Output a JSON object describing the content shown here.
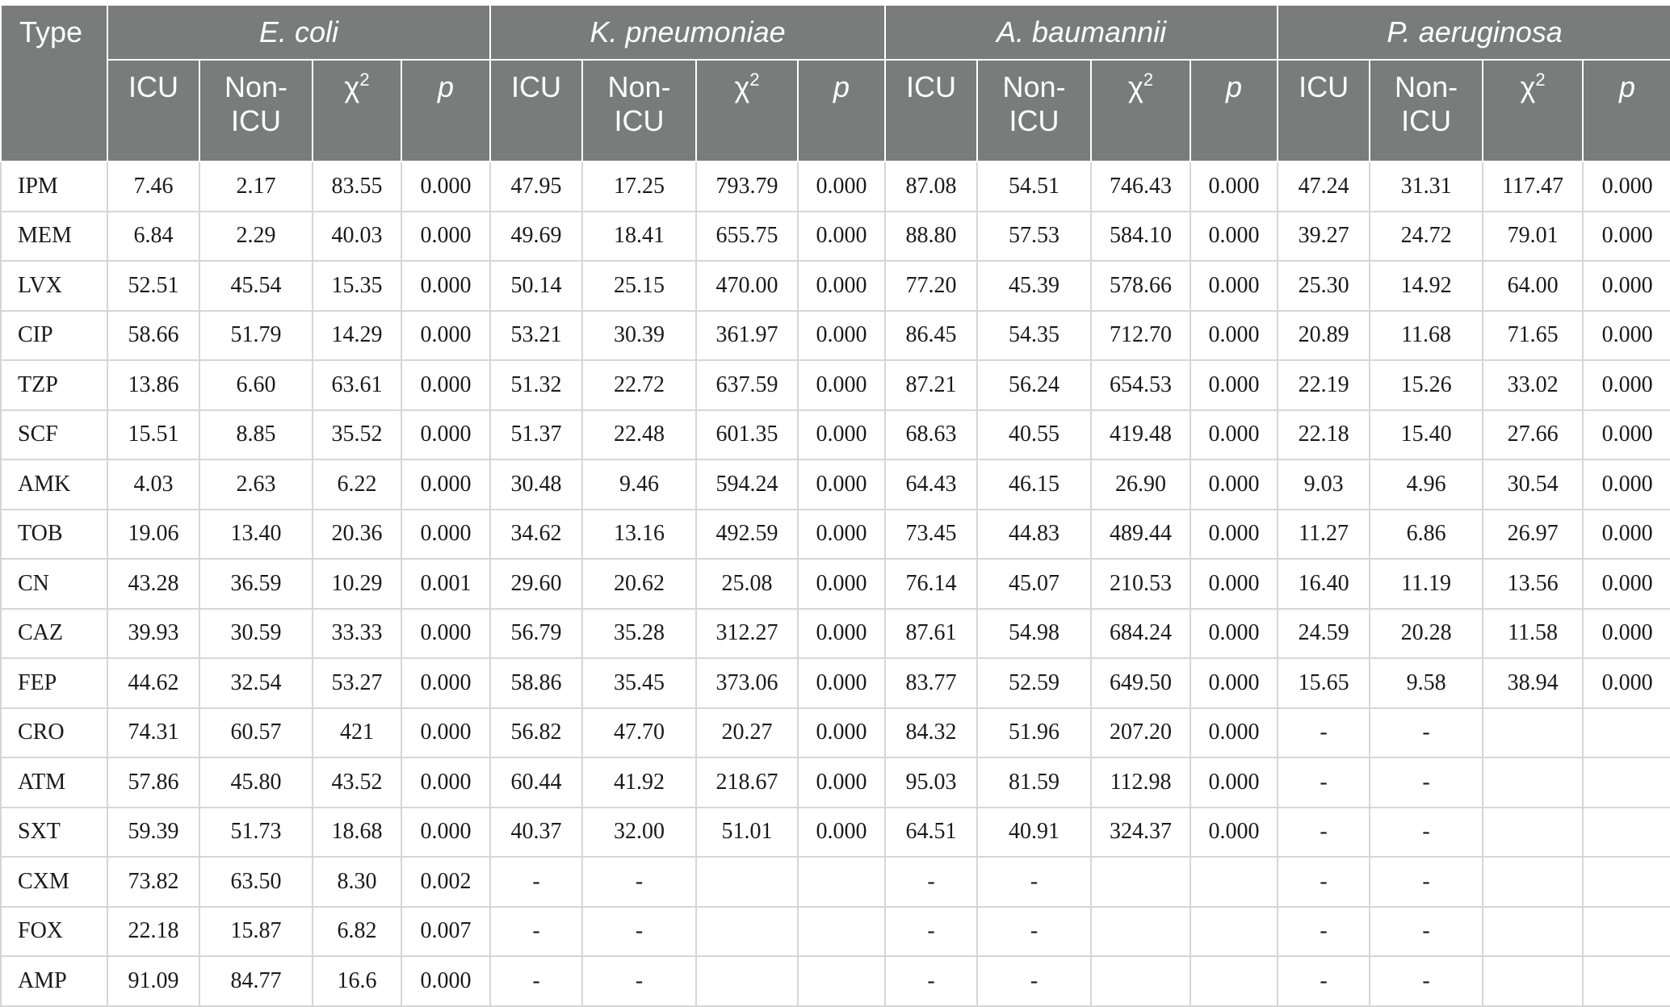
{
  "table": {
    "type_header": "Type",
    "groups": [
      {
        "name": "E. coli",
        "cols": [
          "ICU",
          "Non-ICU",
          "χ2",
          "p"
        ]
      },
      {
        "name": "K. pneumoniae",
        "cols": [
          "ICU",
          "Non-ICU",
          "χ2",
          "p"
        ]
      },
      {
        "name": "A. baumannii",
        "cols": [
          "ICU",
          "Non-ICU",
          "χ2",
          "p"
        ]
      },
      {
        "name": "P. aeruginosa",
        "cols": [
          "ICU",
          "Non-ICU",
          "χ2",
          "p"
        ]
      }
    ],
    "sub_labels": {
      "icu": "ICU",
      "non_icu": "Non-ICU",
      "chi": "χ",
      "chi_exp": "2",
      "p": "p"
    },
    "rows": [
      {
        "type": "IPM",
        "values": [
          "7.46",
          "2.17",
          "83.55",
          "0.000",
          "47.95",
          "17.25",
          "793.79",
          "0.000",
          "87.08",
          "54.51",
          "746.43",
          "0.000",
          "47.24",
          "31.31",
          "117.47",
          "0.000"
        ]
      },
      {
        "type": "MEM",
        "values": [
          "6.84",
          "2.29",
          "40.03",
          "0.000",
          "49.69",
          "18.41",
          "655.75",
          "0.000",
          "88.80",
          "57.53",
          "584.10",
          "0.000",
          "39.27",
          "24.72",
          "79.01",
          "0.000"
        ]
      },
      {
        "type": "LVX",
        "values": [
          "52.51",
          "45.54",
          "15.35",
          "0.000",
          "50.14",
          "25.15",
          "470.00",
          "0.000",
          "77.20",
          "45.39",
          "578.66",
          "0.000",
          "25.30",
          "14.92",
          "64.00",
          "0.000"
        ]
      },
      {
        "type": "CIP",
        "values": [
          "58.66",
          "51.79",
          "14.29",
          "0.000",
          "53.21",
          "30.39",
          "361.97",
          "0.000",
          "86.45",
          "54.35",
          "712.70",
          "0.000",
          "20.89",
          "11.68",
          "71.65",
          "0.000"
        ]
      },
      {
        "type": "TZP",
        "values": [
          "13.86",
          "6.60",
          "63.61",
          "0.000",
          "51.32",
          "22.72",
          "637.59",
          "0.000",
          "87.21",
          "56.24",
          "654.53",
          "0.000",
          "22.19",
          "15.26",
          "33.02",
          "0.000"
        ]
      },
      {
        "type": "SCF",
        "values": [
          "15.51",
          "8.85",
          "35.52",
          "0.000",
          "51.37",
          "22.48",
          "601.35",
          "0.000",
          "68.63",
          "40.55",
          "419.48",
          "0.000",
          "22.18",
          "15.40",
          "27.66",
          "0.000"
        ]
      },
      {
        "type": "AMK",
        "values": [
          "4.03",
          "2.63",
          "6.22",
          "0.000",
          "30.48",
          "9.46",
          "594.24",
          "0.000",
          "64.43",
          "46.15",
          "26.90",
          "0.000",
          "9.03",
          "4.96",
          "30.54",
          "0.000"
        ]
      },
      {
        "type": "TOB",
        "values": [
          "19.06",
          "13.40",
          "20.36",
          "0.000",
          "34.62",
          "13.16",
          "492.59",
          "0.000",
          "73.45",
          "44.83",
          "489.44",
          "0.000",
          "11.27",
          "6.86",
          "26.97",
          "0.000"
        ]
      },
      {
        "type": "CN",
        "values": [
          "43.28",
          "36.59",
          "10.29",
          "0.001",
          "29.60",
          "20.62",
          "25.08",
          "0.000",
          "76.14",
          "45.07",
          "210.53",
          "0.000",
          "16.40",
          "11.19",
          "13.56",
          "0.000"
        ]
      },
      {
        "type": "CAZ",
        "values": [
          "39.93",
          "30.59",
          "33.33",
          "0.000",
          "56.79",
          "35.28",
          "312.27",
          "0.000",
          "87.61",
          "54.98",
          "684.24",
          "0.000",
          "24.59",
          "20.28",
          "11.58",
          "0.000"
        ]
      },
      {
        "type": "FEP",
        "values": [
          "44.62",
          "32.54",
          "53.27",
          "0.000",
          "58.86",
          "35.45",
          "373.06",
          "0.000",
          "83.77",
          "52.59",
          "649.50",
          "0.000",
          "15.65",
          "9.58",
          "38.94",
          "0.000"
        ]
      },
      {
        "type": "CRO",
        "values": [
          "74.31",
          "60.57",
          "421",
          "0.000",
          "56.82",
          "47.70",
          "20.27",
          "0.000",
          "84.32",
          "51.96",
          "207.20",
          "0.000",
          "-",
          "-",
          "",
          ""
        ]
      },
      {
        "type": "ATM",
        "values": [
          "57.86",
          "45.80",
          "43.52",
          "0.000",
          "60.44",
          "41.92",
          "218.67",
          "0.000",
          "95.03",
          "81.59",
          "112.98",
          "0.000",
          "-",
          "-",
          "",
          ""
        ]
      },
      {
        "type": "SXT",
        "values": [
          "59.39",
          "51.73",
          "18.68",
          "0.000",
          "40.37",
          "32.00",
          "51.01",
          "0.000",
          "64.51",
          "40.91",
          "324.37",
          "0.000",
          "-",
          "-",
          "",
          ""
        ]
      },
      {
        "type": "CXM",
        "values": [
          "73.82",
          "63.50",
          "8.30",
          "0.002",
          "-",
          "-",
          "",
          "",
          "-",
          "-",
          "",
          "",
          "-",
          "-",
          "",
          ""
        ]
      },
      {
        "type": "FOX",
        "values": [
          "22.18",
          "15.87",
          "6.82",
          "0.007",
          "-",
          "-",
          "",
          "",
          "-",
          "-",
          "",
          "",
          "-",
          "-",
          "",
          ""
        ]
      },
      {
        "type": "AMP",
        "values": [
          "91.09",
          "84.77",
          "16.6",
          "0.000",
          "-",
          "-",
          "",
          "",
          "-",
          "-",
          "",
          "",
          "-",
          "-",
          "",
          ""
        ]
      }
    ]
  }
}
